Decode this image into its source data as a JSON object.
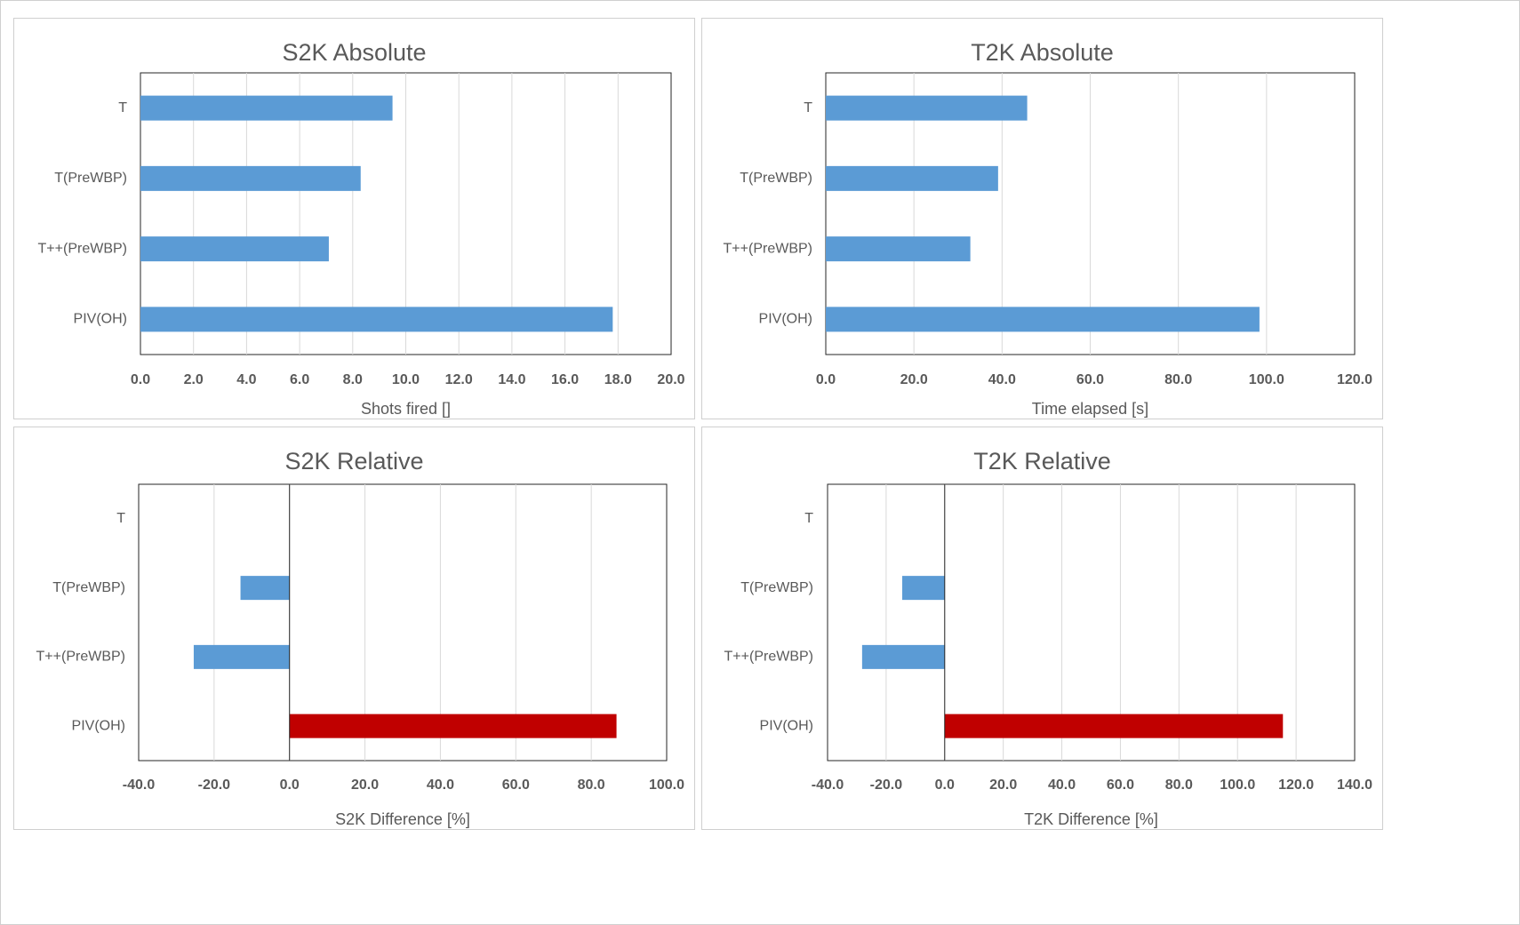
{
  "chart_data": [
    {
      "type": "bar",
      "orientation": "horizontal",
      "title": "S2K Absolute",
      "xlabel": "Shots fired []",
      "ylabel": "",
      "categories": [
        "T",
        "T(PreWBP)",
        "T++(PreWBP)",
        "PIV(OH)"
      ],
      "series": [
        {
          "values": [
            9.5,
            8.3,
            7.1,
            17.8
          ]
        }
      ],
      "xlim": [
        0,
        20
      ],
      "xticks": [
        "0.0",
        "2.0",
        "4.0",
        "6.0",
        "8.0",
        "10.0",
        "12.0",
        "14.0",
        "16.0",
        "18.0",
        "20.0"
      ],
      "grid": "vertical",
      "legend": "none",
      "colors": {
        "bar": "#5b9bd5"
      }
    },
    {
      "type": "bar",
      "orientation": "horizontal",
      "title": "T2K Absolute",
      "xlabel": "Time elapsed [s]",
      "ylabel": "",
      "categories": [
        "T",
        "T(PreWBP)",
        "T++(PreWBP)",
        "PIV(OH)"
      ],
      "series": [
        {
          "values": [
            45.7,
            39.1,
            32.8,
            98.4
          ]
        }
      ],
      "xlim": [
        0,
        120
      ],
      "xticks": [
        "0.0",
        "20.0",
        "40.0",
        "60.0",
        "80.0",
        "100.0",
        "120.0"
      ],
      "grid": "vertical",
      "legend": "none",
      "colors": {
        "bar": "#5b9bd5"
      }
    },
    {
      "type": "bar",
      "orientation": "horizontal",
      "title": "S2K Relative",
      "xlabel": "S2K Difference [%]",
      "ylabel": "",
      "categories": [
        "T",
        "T(PreWBP)",
        "T++(PreWBP)",
        "PIV(OH)"
      ],
      "series": [
        {
          "values": [
            0,
            -13.0,
            -25.4,
            86.7
          ]
        }
      ],
      "xlim": [
        -40,
        100
      ],
      "xticks": [
        "-40.0",
        "-20.0",
        "0.0",
        "20.0",
        "40.0",
        "60.0",
        "80.0",
        "100.0"
      ],
      "grid": "vertical",
      "legend": "none",
      "colors": {
        "negative": "#5b9bd5",
        "positive": "#c00000"
      }
    },
    {
      "type": "bar",
      "orientation": "horizontal",
      "title": "T2K Relative",
      "xlabel": "T2K Difference [%]",
      "ylabel": "",
      "categories": [
        "T",
        "T(PreWBP)",
        "T++(PreWBP)",
        "PIV(OH)"
      ],
      "series": [
        {
          "values": [
            0,
            -14.5,
            -28.2,
            115.5
          ]
        }
      ],
      "xlim": [
        -40,
        140
      ],
      "xticks": [
        "-40.0",
        "-20.0",
        "0.0",
        "20.0",
        "40.0",
        "60.0",
        "80.0",
        "100.0",
        "120.0",
        "140.0"
      ],
      "grid": "vertical",
      "legend": "none",
      "colors": {
        "negative": "#5b9bd5",
        "positive": "#c00000"
      }
    }
  ]
}
